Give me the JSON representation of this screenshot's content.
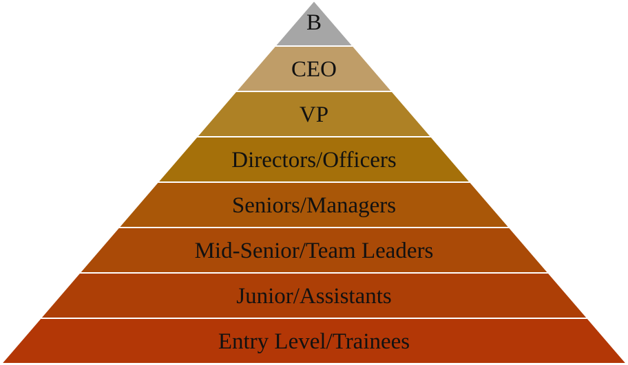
{
  "pyramid": {
    "levels": [
      {
        "label": "B",
        "color": "#a6a6a6"
      },
      {
        "label": "CEO",
        "color": "#bf9d68"
      },
      {
        "label": "VP",
        "color": "#ae8125"
      },
      {
        "label": "Directors/Officers",
        "color": "#a5700a"
      },
      {
        "label": "Seniors/Managers",
        "color": "#a95708"
      },
      {
        "label": "Mid-Senior/Team Leaders",
        "color": "#aa4a07"
      },
      {
        "label": "Junior/Assistants",
        "color": "#ad3f06"
      },
      {
        "label": "Entry Level/Trainees",
        "color": "#b33706"
      }
    ],
    "separator_color": "#ffffff"
  }
}
